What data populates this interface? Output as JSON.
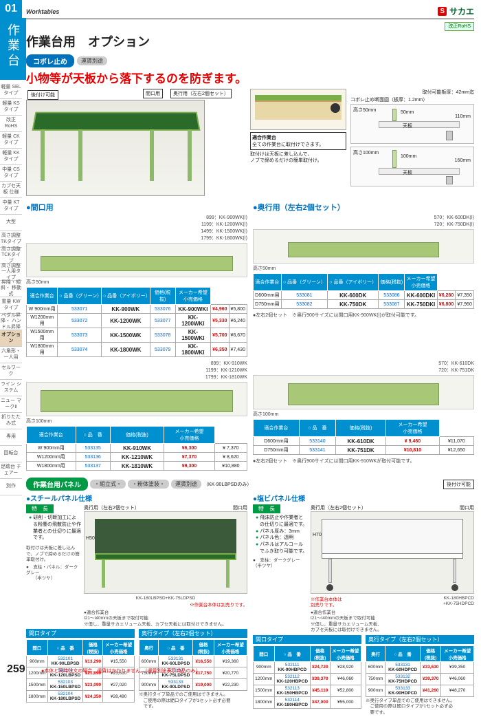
{
  "header": {
    "worktables": "Worktables",
    "logo_s": "S",
    "logo_txt": "サカエ",
    "rohs": "改正RoHS"
  },
  "side": {
    "num": "01",
    "title": "作業台",
    "items": [
      "軽量\nSELタイプ",
      "軽量\nKSタイプ",
      "改正RoHS",
      "軽量\nCKタイプ",
      "軽量\nKKタイプ",
      "中量\nCSタイプ",
      "カブセ天板\n仕様",
      "中量\nKTタイプ",
      "大型",
      "高さ調整\nTKタイプ",
      "高さ調整\nTCKタイプ",
      "高さ調整\n一人用タイプ",
      "昇降・傾斜・\n移動式",
      "重量\nKWタイプ",
      "ペダル昇降・\nハンドル昇降",
      "オプション",
      "六角形・\n一人用",
      "セルワーク",
      "ライン\nシステム",
      "ニュー\nマークⅡ",
      "折りたたみ式",
      "専用",
      "回転台",
      "足踏台\nチェアー",
      "別作"
    ],
    "hl_index": 15
  },
  "page_title": "作業台用　オプション",
  "sec1": {
    "tag": "コボレ止め",
    "ship": "運賃別途",
    "headline": "小物等が天板から落下するのを防ぎます。",
    "retrofit": "後付け可能",
    "lab1": "間口用",
    "lab2": "奥行用（左右2個セット）",
    "compat_title": "適合作業台",
    "compat_txt": "全ての作業台に取付けできます。",
    "install_note": "取付けは天板に差し込んで、\nノブで締めるだけの簡単取付け。",
    "dim_title": "コボレ止め断面図（板厚：1.2mm）",
    "dim_sub": "取付可能板厚：42mm迄",
    "dim_h50": "高さ50mm",
    "dim_h100": "高さ100mm",
    "dim_50": "50mm",
    "dim_110": "110mm",
    "dim_100": "100mm",
    "dim_160": "160mm",
    "dim_tenban": "天板"
  },
  "maguchi": {
    "title": "間口用",
    "h": "高さ50mm",
    "dims": "899：KK-900WK(I)\n1199：KK-1200WK(I)\n1499：KK-1500WK(I)\n1799：KK-1800WK(I)",
    "cols": [
      "適合作業台",
      "○ 品番（グリーン）",
      "○ 品番（アイボリー）",
      "価格(税抜)",
      "メーカー希望\n小売価格"
    ],
    "rows": [
      [
        "W 900mm用",
        "533071",
        "KK-900WK",
        "533076",
        "KK-900WKI",
        "¥4,960",
        "¥5,800"
      ],
      [
        "W1200mm用",
        "533072",
        "KK-1200WK",
        "533077",
        "KK-1200WKI",
        "¥5,330",
        "¥6,240"
      ],
      [
        "W1500mm用",
        "533073",
        "KK-1500WK",
        "533078",
        "KK-1500WKI",
        "¥5,700",
        "¥6,670"
      ],
      [
        "W1800mm用",
        "533074",
        "KK-1800WK",
        "533079",
        "KK-1800WKI",
        "¥6,350",
        "¥7,430"
      ]
    ]
  },
  "okuyuki": {
    "title": "奥行用（左右2個セット）",
    "h": "高さ50mm",
    "dims": "570：KK-600DK(I)\n720：KK-750DK(I)",
    "cols": [
      "適合作業台",
      "○ 品番（グリーン）",
      "○ 品番（アイボリー）",
      "価格(税抜)",
      "メーカー希望\n小売価格"
    ],
    "rows": [
      [
        "D600mm用",
        "533081",
        "KK-600DK",
        "533086",
        "KK-600DKI",
        "¥6,280",
        "¥7,350"
      ],
      [
        "D750mm用",
        "533082",
        "KK-750DK",
        "533087",
        "KK-750DKI",
        "¥6,800",
        "¥7,960"
      ]
    ],
    "note": "●左右2個セット　※奥行900サイズには間口用KK-900WK(I)が取付可能です。"
  },
  "maguchi100": {
    "h": "高さ100mm",
    "dims": "899：KK-910WK\n1199：KK-1210WK\n1799：KK-1810WK",
    "cols": [
      "適合作業台",
      "○ 品　番",
      "価格(税抜)",
      "メーカー希望\n小売価格"
    ],
    "rows": [
      [
        "W 900mm用",
        "533135",
        "KK-910WK",
        "¥6,300",
        "¥ 7,370"
      ],
      [
        "W1200mm用",
        "533136",
        "KK-1210WK",
        "¥7,370",
        "¥ 8,620"
      ],
      [
        "W1800mm用",
        "533137",
        "KK-1810WK",
        "¥9,300",
        "¥10,880"
      ]
    ]
  },
  "okuyuki100": {
    "h": "高さ100mm",
    "dims": "570：KK-610DK\n720：KK-751DK",
    "cols": [
      "適合作業台",
      "○ 品　番",
      "価格(税抜)",
      "メーカー希望\n小売価格"
    ],
    "rows": [
      [
        "D600mm用",
        "533140",
        "KK-610DK",
        "¥ 9,460",
        "¥11,070"
      ],
      [
        "D750mm用",
        "533141",
        "KK-751DK",
        "¥10,810",
        "¥12,650"
      ]
    ],
    "note": "●左右2個セット　※奥行900サイズには間口用KK-910WKが取付可能です。"
  },
  "sec2": {
    "tag": "作業台用パネル",
    "assembly": "・組立式・",
    "paint": "・粉体塗装・",
    "ship": "運賃別途",
    "ship_note": "（KK-90LBPSDのみ）",
    "retrofit": "後付け可能"
  },
  "steel": {
    "title": "スチールパネル仕様",
    "feature_hdr": "特　長",
    "features": [
      "研削・切断加工による粉塵の飛散防止や作業者との仕切りに最適です。"
    ],
    "lab_oku": "奥行用（左右2個セット）",
    "lab_maguchi": "間口用",
    "H": "H500",
    "caption": "KK-180LBPSD+KK-75LDPSD",
    "body_note": "※作業台本体は別売りです。",
    "install": "取付けは天板に差し込んで、ノブで締めるだけの簡単取付け。",
    "compat": "●適合作業台\nt21～t40mmの天板まで取付可能\n※但し、重量サカエリューム天板、カプセ天板には取付けできません。",
    "pillar": "●　支柱・パネル：ダークグレー\n　　（半ツヤ）",
    "maguchi_title": "間口タイプ",
    "maguchi_cols": [
      "間口",
      "○ 品　番",
      "価格\n(税抜)",
      "メーカー希望\n小売価格"
    ],
    "maguchi_rows": [
      [
        "900mm",
        "532101",
        "KK-90LBPSD",
        "¥13,290",
        "¥15,550"
      ],
      [
        "1200mm",
        "532102",
        "KK-120LBPSD",
        "¥21,890",
        "¥25,610"
      ],
      [
        "1500mm",
        "532103",
        "KK-150LBPSD",
        "¥23,090",
        "¥27,020"
      ],
      [
        "1800mm",
        "532104",
        "KK-180LBPSD",
        "¥24,350",
        "¥28,490"
      ]
    ],
    "oku_title": "奥行タイプ（左右2個セット）",
    "oku_cols": [
      "奥行",
      "○ 品　番",
      "価格\n(税抜)",
      "メーカー希望\n小売価格"
    ],
    "oku_rows": [
      [
        "600mm",
        "533131",
        "KK-60LDPSD",
        "¥16,550",
        "¥19,360"
      ],
      [
        "750mm",
        "533132",
        "KK-75LDPSD",
        "¥17,750",
        "¥20,770"
      ],
      [
        "900mm",
        "533133",
        "KK-90LDPSD",
        "¥19,000",
        "¥22,230"
      ]
    ],
    "oku_note": "※奥行タイプ単品でのご使用はできません。\n　ご使用の際は間口タイプが1セット必ず必要\n　です。"
  },
  "vinyl": {
    "title": "塩ビパネル仕様",
    "feature_hdr": "特　長",
    "features": [
      "飛沫防止や作業者との仕切りに最適です。",
      "パネル厚み：3mm",
      "パネル色：透明",
      "パネルはアルコールでふき取り可能です。"
    ],
    "lab_oku": "奥行用（左右2個セット）",
    "lab_maguchi": "間口用",
    "H": "H700",
    "caption": "KK-180HBPCD\n+KK-75HDPCD",
    "body_note": "※作業台本体は\n別売りです。",
    "compat": "●適合作業台\nt21～t40mmの天板まで取付可能\n※但し、重量サカエリューム天板、\nカプセ天板には取付けできません。",
    "pillar": "●　支柱：ダークグレー（半ツヤ）",
    "maguchi_title": "間口タイプ",
    "maguchi_cols": [
      "間口",
      "○ 品　番",
      "価格\n(税抜)",
      "メーカー希望\n小売価格"
    ],
    "maguchi_rows": [
      [
        "900mm",
        "532111",
        "KK-90HBPCD",
        "¥24,720",
        "¥28,920"
      ],
      [
        "1200mm",
        "532112",
        "KK-120HBPCD",
        "¥39,370",
        "¥46,060"
      ],
      [
        "1500mm",
        "532113",
        "KK-150HBPCD",
        "¥45,110",
        "¥52,800"
      ],
      [
        "1800mm",
        "532114",
        "KK-180HBPCD",
        "¥47,000",
        "¥55,000"
      ]
    ],
    "oku_title": "奥行タイプ（左右2個セット）",
    "oku_cols": [
      "奥行",
      "○ 品　番",
      "価格\n(税抜)",
      "メーカー希望\n小売価格"
    ],
    "oku_rows": [
      [
        "600mm",
        "533131",
        "KK-60HDPCD",
        "¥33,630",
        "¥39,350"
      ],
      [
        "750mm",
        "533132",
        "KK-75HDPCD",
        "¥39,370",
        "¥46,060"
      ],
      [
        "900mm",
        "533133",
        "KK-90HDPCD",
        "¥41,260",
        "¥48,270"
      ]
    ],
    "oku_note": "※奥行タイプ単品でのご使用はできません。\n　ご使用の際は間口タイプが1セット必ず必\n　要です。"
  },
  "footer": {
    "page": "259",
    "note": "●本体と同時注文の場合、運賃はかかりません。（運賃別途表示商品のみ）"
  }
}
